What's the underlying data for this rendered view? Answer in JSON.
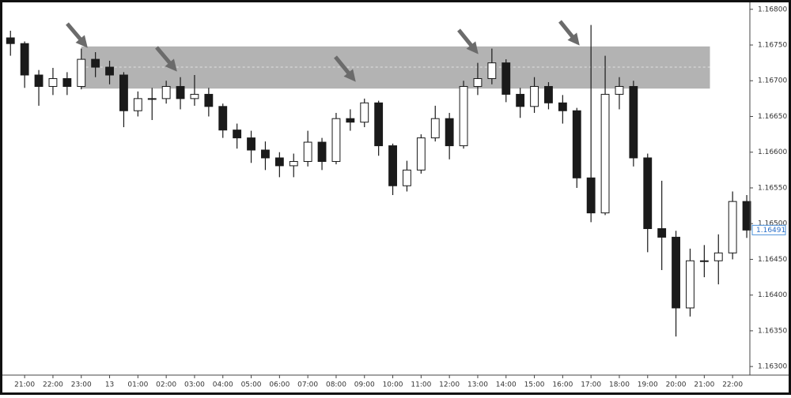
{
  "chart_data": {
    "type": "candlestick",
    "color": "#1a1a1a",
    "x": [
      -0.5,
      0,
      0.5,
      1,
      1.5,
      2,
      2.5,
      3,
      3.5,
      4,
      4.5,
      5,
      5.5,
      6,
      6.5,
      7,
      7.5,
      8,
      8.5,
      9,
      9.5,
      10,
      10.5,
      11,
      11.5,
      12,
      12.5,
      13,
      13.5,
      14,
      14.5,
      15,
      15.5,
      16,
      16.5,
      17,
      17.5,
      18,
      18.5,
      19,
      19.5,
      20,
      20.5,
      21,
      21.5,
      22,
      22.5,
      23,
      23.5,
      24,
      24.5,
      25,
      25.5
    ],
    "open": [
      1.1676,
      1.16752,
      1.16708,
      1.16692,
      1.16703,
      1.16692,
      1.1673,
      1.16719,
      1.16708,
      1.16658,
      1.16675,
      1.16675,
      1.16692,
      1.16675,
      1.16681,
      1.16664,
      1.16631,
      1.1662,
      1.16603,
      1.16592,
      1.16581,
      1.16587,
      1.16614,
      1.16587,
      1.16647,
      1.16642,
      1.16669,
      1.16609,
      1.16553,
      1.16575,
      1.1662,
      1.16647,
      1.16609,
      1.16692,
      1.16703,
      1.16725,
      1.16681,
      1.16664,
      1.16692,
      1.16669,
      1.16658,
      1.16564,
      1.16515,
      1.16681,
      1.16692,
      1.16592,
      1.16493,
      1.16481,
      1.16382,
      1.16448,
      1.16448,
      1.16459,
      1.16531
    ],
    "high": [
      1.1677,
      1.16755,
      1.16715,
      1.16718,
      1.16712,
      1.16745,
      1.1674,
      1.16728,
      1.16712,
      1.16685,
      1.1669,
      1.167,
      1.16705,
      1.16708,
      1.1669,
      1.16668,
      1.1664,
      1.1663,
      1.16615,
      1.166,
      1.16598,
      1.1663,
      1.1662,
      1.16655,
      1.1666,
      1.16675,
      1.16672,
      1.16612,
      1.16588,
      1.16625,
      1.16665,
      1.16655,
      1.167,
      1.16725,
      1.16745,
      1.1673,
      1.1669,
      1.16705,
      1.16698,
      1.1668,
      1.16662,
      1.16778,
      1.16735,
      1.16705,
      1.167,
      1.16598,
      1.1656,
      1.1649,
      1.16465,
      1.1647,
      1.16485,
      1.16545,
      1.1654
    ],
    "low": [
      1.16735,
      1.1669,
      1.16665,
      1.1668,
      1.1668,
      1.16688,
      1.16705,
      1.16695,
      1.16635,
      1.1665,
      1.16645,
      1.16668,
      1.1666,
      1.16665,
      1.1665,
      1.1662,
      1.16605,
      1.16585,
      1.16575,
      1.16565,
      1.16565,
      1.1658,
      1.16575,
      1.16583,
      1.1663,
      1.16635,
      1.16595,
      1.1654,
      1.16545,
      1.1657,
      1.16615,
      1.1659,
      1.16605,
      1.1668,
      1.16695,
      1.1667,
      1.16648,
      1.16655,
      1.1666,
      1.1664,
      1.1655,
      1.16502,
      1.16512,
      1.1666,
      1.1658,
      1.1646,
      1.16435,
      1.16342,
      1.1637,
      1.16425,
      1.16415,
      1.1645,
      1.1648
    ],
    "close": [
      1.16752,
      1.16708,
      1.16692,
      1.16703,
      1.16692,
      1.1673,
      1.16719,
      1.16708,
      1.16658,
      1.16675,
      1.16675,
      1.16692,
      1.16675,
      1.16681,
      1.16664,
      1.16631,
      1.1662,
      1.16603,
      1.16592,
      1.16581,
      1.16587,
      1.16614,
      1.16587,
      1.16647,
      1.16642,
      1.16669,
      1.16609,
      1.16553,
      1.16575,
      1.1662,
      1.16647,
      1.16609,
      1.16692,
      1.16703,
      1.16725,
      1.16681,
      1.16664,
      1.16692,
      1.16669,
      1.16658,
      1.16564,
      1.16515,
      1.16681,
      1.16692,
      1.16592,
      1.16493,
      1.16481,
      1.16382,
      1.16448,
      1.16448,
      1.16459,
      1.16531,
      1.16491
    ],
    "zone": {
      "low": 1.16689,
      "high": 1.16748,
      "mid": 1.16719,
      "x_range": [
        2,
        24.2
      ],
      "color": "#b3b3b3"
    },
    "xlim": [
      -0.87,
      25.61
    ],
    "ylim": [
      1.16288,
      1.16813
    ],
    "xticks": [
      {
        "value": 0,
        "label": "21:00"
      },
      {
        "value": 1,
        "label": "22:00"
      },
      {
        "value": 2,
        "label": "23:00"
      },
      {
        "value": 3,
        "label": "13"
      },
      {
        "value": 4,
        "label": "01:00"
      },
      {
        "value": 5,
        "label": "02:00"
      },
      {
        "value": 6,
        "label": "03:00"
      },
      {
        "value": 7,
        "label": "04:00"
      },
      {
        "value": 8,
        "label": "05:00"
      },
      {
        "value": 9,
        "label": "06:00"
      },
      {
        "value": 10,
        "label": "07:00"
      },
      {
        "value": 11,
        "label": "08:00"
      },
      {
        "value": 12,
        "label": "09:00"
      },
      {
        "value": 13,
        "label": "10:00"
      },
      {
        "value": 14,
        "label": "11:00"
      },
      {
        "value": 15,
        "label": "12:00"
      },
      {
        "value": 16,
        "label": "13:00"
      },
      {
        "value": 17,
        "label": "14:00"
      },
      {
        "value": 18,
        "label": "15:00"
      },
      {
        "value": 19,
        "label": "16:00"
      },
      {
        "value": 20,
        "label": "17:00"
      },
      {
        "value": 21,
        "label": "18:00"
      },
      {
        "value": 22,
        "label": "19:00"
      },
      {
        "value": 23,
        "label": "20:00"
      },
      {
        "value": 24,
        "label": "21:00"
      },
      {
        "value": 25,
        "label": "22:00"
      }
    ],
    "yticks": [
      {
        "value": 1.168,
        "label": "1.16800"
      },
      {
        "value": 1.1675,
        "label": "1.16750"
      },
      {
        "value": 1.167,
        "label": "1.16700"
      },
      {
        "value": 1.1665,
        "label": "1.16650"
      },
      {
        "value": 1.166,
        "label": "1.16600"
      },
      {
        "value": 1.1655,
        "label": "1.16550"
      },
      {
        "value": 1.165,
        "label": "1.16500"
      },
      {
        "value": 1.1645,
        "label": "1.16450"
      },
      {
        "value": 1.164,
        "label": "1.16400"
      },
      {
        "value": 1.1635,
        "label": "1.16350"
      },
      {
        "value": 1.163,
        "label": "1.16300"
      }
    ],
    "grid": false
  }
}
